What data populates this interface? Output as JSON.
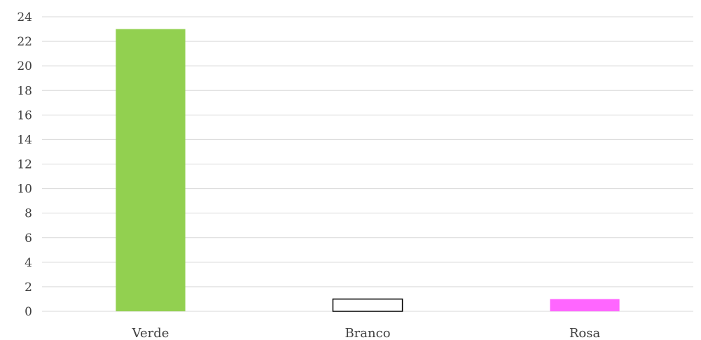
{
  "chart_data": {
    "type": "bar",
    "title": "",
    "xlabel": "",
    "ylabel": "",
    "categories": [
      "Verde",
      "Branco",
      "Rosa"
    ],
    "values": [
      23,
      1,
      1
    ],
    "colors": [
      "#92d050",
      "#ffffff",
      "#ff66ff"
    ],
    "outline_colors": [
      "#92d050",
      "#000000",
      "#ff66ff"
    ],
    "ylim": [
      0,
      24
    ],
    "y_ticks": [
      0,
      2,
      4,
      6,
      8,
      10,
      12,
      14,
      16,
      18,
      20,
      22,
      24
    ],
    "grid": true,
    "legend": "none"
  }
}
